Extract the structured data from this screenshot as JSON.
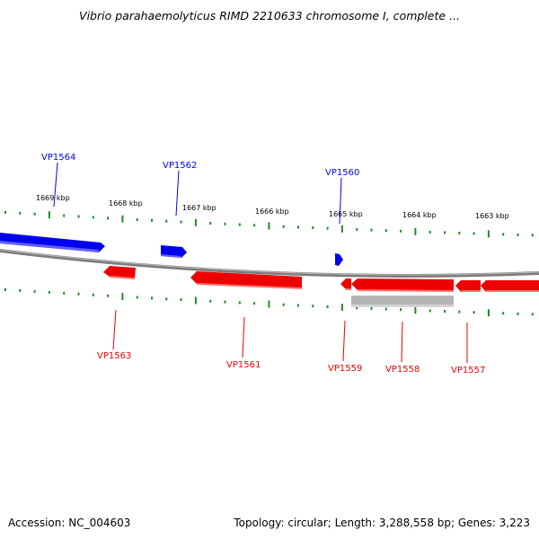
{
  "title": "Vibrio parahaemolyticus RIMD 2210633 chromosome I, complete ...",
  "footer": {
    "accession": "Accession: NC_004603",
    "summary": "Topology: circular; Length: 3,288,558 bp; Genes: 3,223"
  },
  "colors": {
    "forward_gene": "#0000ee",
    "reverse_gene": "#ee0000",
    "backbone": "#808080",
    "ticks": "#228822",
    "extra_feature": "#b4b4b4"
  },
  "scale_labels": [
    "1669 kbp",
    "1668 kbp",
    "1667 kbp",
    "1666 kbp",
    "1665 kbp",
    "1664 kbp",
    "1663 kbp"
  ],
  "genes_forward": [
    "VP1564",
    "VP1562",
    "VP1560"
  ],
  "genes_reverse": [
    "VP1563",
    "VP1561",
    "VP1559",
    "VP1558",
    "VP1557"
  ]
}
